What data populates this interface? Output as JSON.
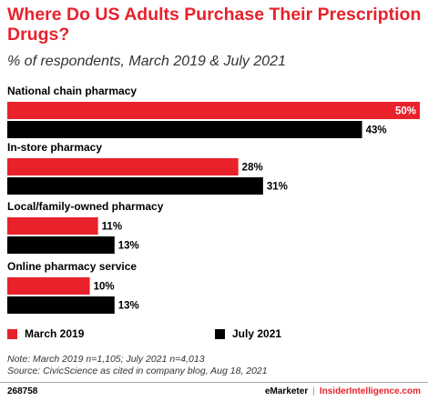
{
  "title": "Where Do US Adults Purchase Their Prescription Drugs?",
  "subtitle": "% of respondents, March 2019 & July 2021",
  "colors": {
    "accent": "#e8212b",
    "march_2019": "#e8212b",
    "july_2021": "#000000"
  },
  "chart_data": {
    "type": "bar",
    "orientation": "horizontal",
    "categories": [
      "National chain pharmacy",
      "In-store pharmacy",
      "Local/family-owned pharmacy",
      "Online pharmacy service"
    ],
    "series": [
      {
        "name": "March 2019",
        "values": [
          50,
          28,
          11,
          10
        ]
      },
      {
        "name": "July 2021",
        "values": [
          43,
          31,
          13,
          13
        ]
      }
    ],
    "value_suffix": "%",
    "xlim": [
      0,
      50
    ],
    "legend_position": "bottom",
    "grid": false
  },
  "legend": {
    "march_label": "March 2019",
    "july_label": "July 2021"
  },
  "note": "Note: March 2019 n=1,105; July 2021 n=4,013",
  "source": "Source: CivicScience as cited in company blog, Aug 18, 2021",
  "footer": {
    "id": "268758",
    "brand_left": "eMarketer",
    "separator": "|",
    "brand_right": "InsiderIntelligence.com"
  }
}
